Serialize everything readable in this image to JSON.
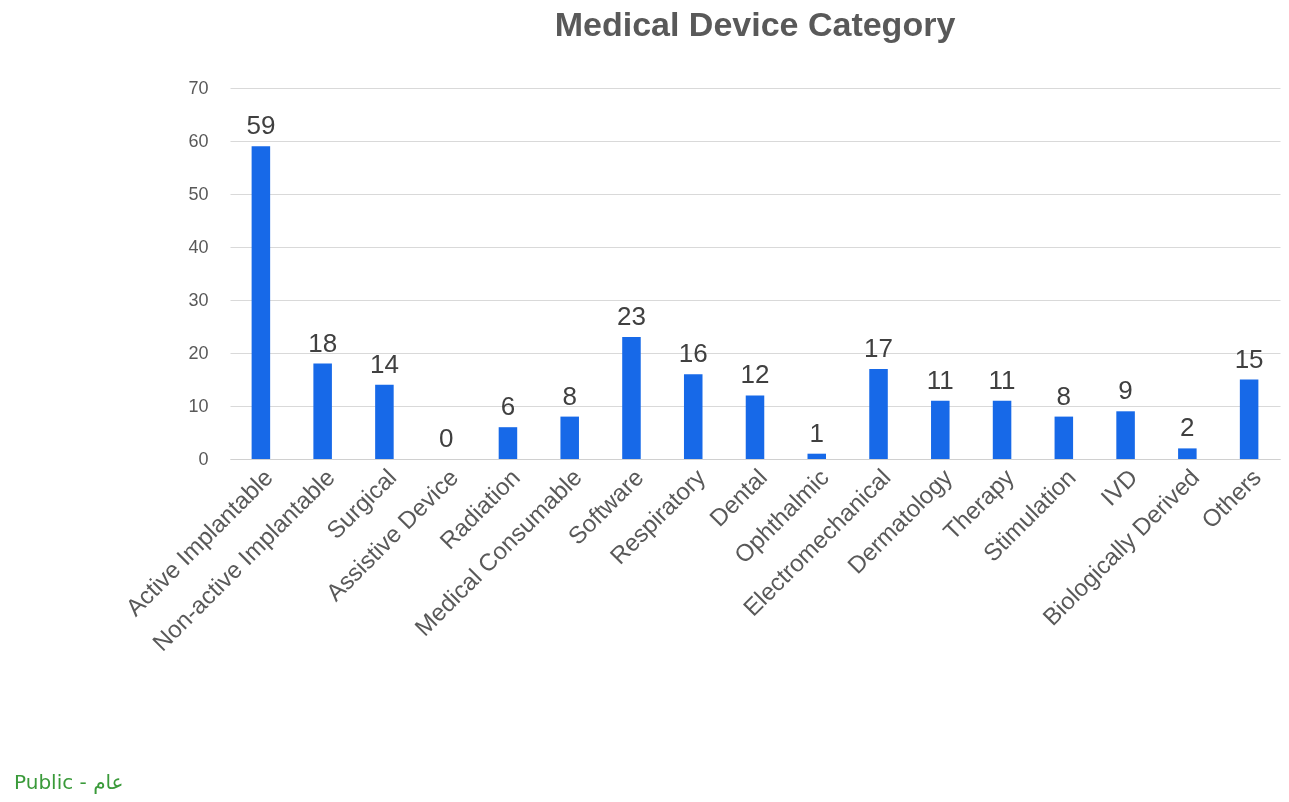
{
  "chart_data": {
    "type": "bar",
    "title": "Medical Device Category",
    "categories": [
      "Active Implantable",
      "Non-active Implantable",
      "Surgical",
      "Assistive Device",
      "Radiation",
      "Medical Consumable",
      "Software",
      "Respiratory",
      "Dental",
      "Ophthalmic",
      "Electromechanical",
      "Dermatology",
      "Therapy",
      "Stimulation",
      "IVD",
      "Biologically Derived",
      "Others"
    ],
    "values": [
      59,
      18,
      14,
      0,
      6,
      8,
      23,
      16,
      12,
      1,
      17,
      11,
      11,
      8,
      9,
      2,
      15
    ],
    "color": "#1769e8",
    "ylim": [
      0,
      70
    ],
    "yticks": [
      0,
      10,
      20,
      30,
      40,
      50,
      60,
      70
    ],
    "grid": "y",
    "data_labels": true,
    "annotations": [
      "Public - عام"
    ]
  }
}
